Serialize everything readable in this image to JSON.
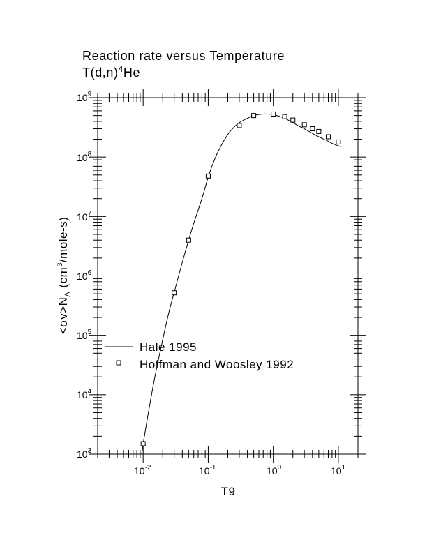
{
  "title_line1": "Reaction rate versus Temperature",
  "title_line2_base": "T(d,n)",
  "title_line2_sup": "4",
  "title_line2_tail": "He",
  "x_axis_label": "T9",
  "y_axis_label": {
    "prefix": "<",
    "sigma": "σ",
    "mid": "v>N",
    "sub": "A",
    "units_open": " (cm",
    "units_sup": "3",
    "units_close": "/mole-s)"
  },
  "x_tick_labels": [
    {
      "base": "10",
      "exp": "-2"
    },
    {
      "base": "10",
      "exp": "-1"
    },
    {
      "base": "10",
      "exp": "0"
    },
    {
      "base": "10",
      "exp": "1"
    }
  ],
  "y_tick_labels": [
    {
      "base": "10",
      "exp": "3"
    },
    {
      "base": "10",
      "exp": "4"
    },
    {
      "base": "10",
      "exp": "5"
    },
    {
      "base": "10",
      "exp": "6"
    },
    {
      "base": "10",
      "exp": "7"
    },
    {
      "base": "10",
      "exp": "8"
    },
    {
      "base": "10",
      "exp": "9"
    }
  ],
  "chart_data": {
    "type": "line",
    "title": "Reaction rate versus Temperature T(d,n)4He",
    "xlabel": "T9",
    "ylabel": "<σv>N_A (cm3/mole-s)",
    "xscale": "log",
    "yscale": "log",
    "xlim": [
      0.002,
      20
    ],
    "ylim": [
      1000,
      1000000000
    ],
    "x_ticks": [
      0.01,
      0.1,
      1,
      10
    ],
    "y_ticks": [
      1000,
      10000,
      100000,
      1000000,
      10000000,
      100000000,
      1000000000
    ],
    "grid": false,
    "legend_position": "lower-left",
    "series": [
      {
        "name": "Hale 1995",
        "style": "line",
        "color": "#000000",
        "x": [
          0.0095,
          0.01,
          0.012,
          0.015,
          0.02,
          0.025,
          0.03,
          0.04,
          0.05,
          0.06,
          0.08,
          0.1,
          0.12,
          0.15,
          0.2,
          0.25,
          0.3,
          0.4,
          0.5,
          0.6,
          0.7,
          0.8,
          1.0,
          1.2,
          1.5,
          2.0,
          2.5,
          3.0,
          4.0,
          5.0,
          6.0,
          7.0,
          8.0,
          10.0,
          11.0
        ],
        "y": [
          900,
          1500,
          4900,
          19000,
          85000,
          250000,
          530000,
          1700000,
          4000000,
          7700000,
          20000000,
          46000000,
          81000000,
          140000000,
          240000000,
          320000000,
          380000000,
          450000000,
          500000000,
          520000000,
          530000000,
          530000000,
          520000000,
          490000000,
          450000000,
          380000000,
          330000000,
          300000000,
          250000000,
          220000000,
          200000000,
          185000000,
          170000000,
          155000000,
          150000000
        ]
      },
      {
        "name": "Hoffman and Woosley 1992",
        "style": "markers",
        "marker": "open-square",
        "color": "#000000",
        "x": [
          0.01,
          0.03,
          0.05,
          0.1,
          0.3,
          0.5,
          1.0,
          1.5,
          2.0,
          3.0,
          4.0,
          5.0,
          7.0,
          10.0
        ],
        "y": [
          1500,
          520000,
          4000000,
          48000000,
          340000000,
          500000000,
          530000000,
          480000000,
          420000000,
          350000000,
          300000000,
          270000000,
          220000000,
          180000000
        ]
      }
    ]
  }
}
